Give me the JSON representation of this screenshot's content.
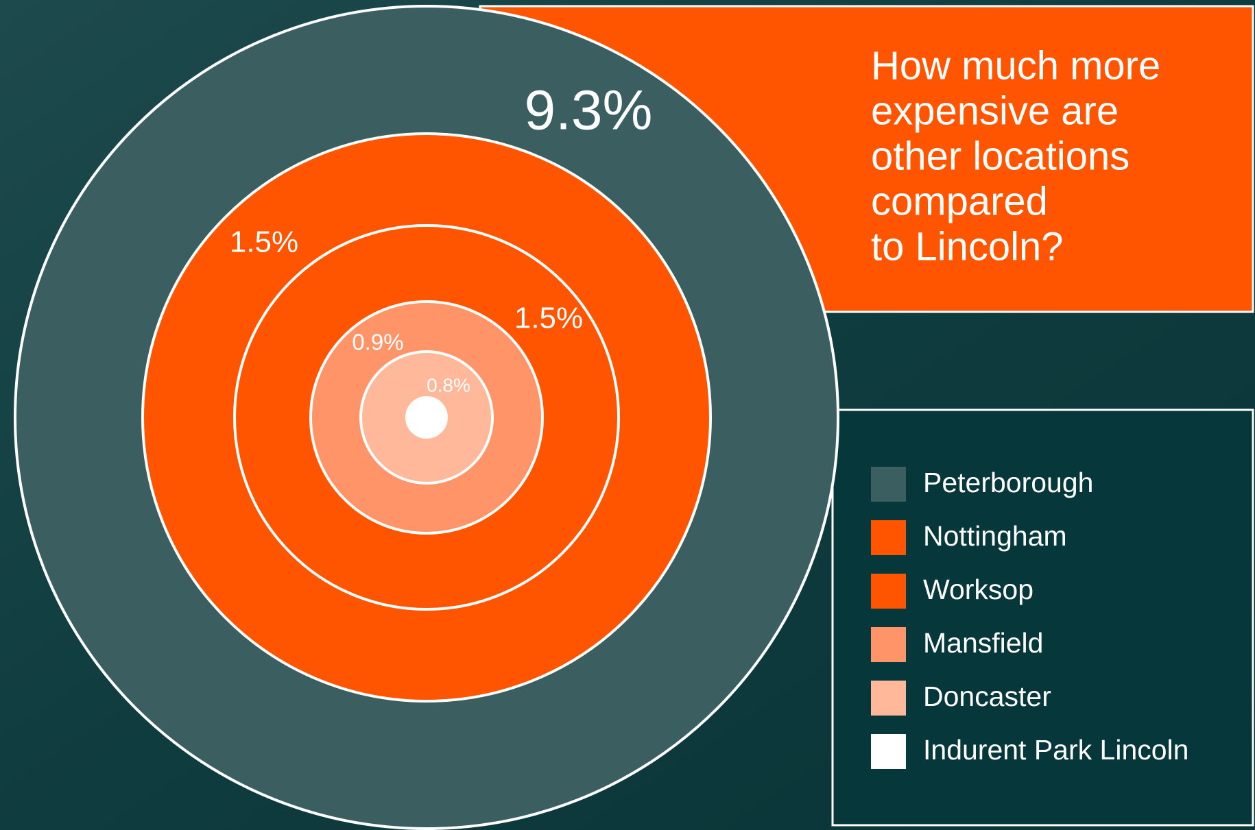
{
  "chart_data": {
    "type": "concentric",
    "title": [
      "How much more",
      "expensive are",
      "other locations",
      "compared",
      "to Lincoln?"
    ],
    "categories": [
      "Peterborough",
      "Nottingham",
      "Worksop",
      "Mansfield",
      "Doncaster",
      "Indurent Park Lincoln"
    ],
    "values": [
      9.3,
      1.5,
      1.5,
      0.9,
      0.8,
      null
    ],
    "value_labels": [
      "9.3%",
      "1.5%",
      "1.5%",
      "0.9%",
      "0.8%",
      null
    ],
    "colors": [
      "#3b5f60",
      "#ff5400",
      "#ff5400",
      "#ff9468",
      "#ffb899",
      "#ffffff"
    ]
  }
}
